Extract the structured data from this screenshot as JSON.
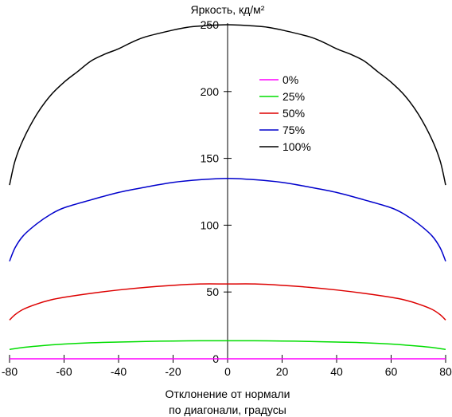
{
  "chart_data": {
    "type": "line",
    "ylabel": "Яркость, кд/м²",
    "xlabel": [
      "Отклонение от нормали",
      "по диагонали, градусы"
    ],
    "xlim": [
      -80,
      80
    ],
    "ylim": [
      0,
      250
    ],
    "xticks": [
      -80,
      -60,
      -40,
      -20,
      0,
      20,
      40,
      60,
      80
    ],
    "yticks": [
      0,
      50,
      100,
      150,
      200,
      250
    ],
    "grid": false,
    "legend_position": "center",
    "series": [
      {
        "name": "0%",
        "color": "#ff00ff",
        "points": [
          [
            -80,
            0
          ],
          [
            -60,
            0
          ],
          [
            -40,
            0
          ],
          [
            -20,
            0
          ],
          [
            0,
            0
          ],
          [
            20,
            0
          ],
          [
            40,
            0
          ],
          [
            60,
            0
          ],
          [
            80,
            0
          ]
        ]
      },
      {
        "name": "25%",
        "color": "#00dd00",
        "points": [
          [
            -80,
            7
          ],
          [
            -75,
            8.5
          ],
          [
            -70,
            9.5
          ],
          [
            -60,
            11
          ],
          [
            -50,
            12
          ],
          [
            -40,
            12.5
          ],
          [
            -30,
            13
          ],
          [
            -20,
            13.3
          ],
          [
            -10,
            13.5
          ],
          [
            0,
            13.5
          ],
          [
            10,
            13.5
          ],
          [
            20,
            13.3
          ],
          [
            30,
            13
          ],
          [
            40,
            12.5
          ],
          [
            50,
            12
          ],
          [
            60,
            11
          ],
          [
            70,
            9.5
          ],
          [
            75,
            8.5
          ],
          [
            80,
            7
          ]
        ]
      },
      {
        "name": "50%",
        "color": "#dd0000",
        "points": [
          [
            -80,
            29
          ],
          [
            -78,
            33
          ],
          [
            -75,
            37
          ],
          [
            -70,
            41
          ],
          [
            -65,
            44
          ],
          [
            -60,
            46
          ],
          [
            -50,
            49
          ],
          [
            -40,
            51.5
          ],
          [
            -30,
            53.5
          ],
          [
            -20,
            55
          ],
          [
            -10,
            56
          ],
          [
            0,
            56
          ],
          [
            10,
            56
          ],
          [
            20,
            55
          ],
          [
            30,
            53.5
          ],
          [
            40,
            51.5
          ],
          [
            50,
            49
          ],
          [
            60,
            46
          ],
          [
            65,
            44
          ],
          [
            70,
            41
          ],
          [
            75,
            37
          ],
          [
            78,
            33
          ],
          [
            80,
            29
          ]
        ]
      },
      {
        "name": "75%",
        "color": "#0000cc",
        "points": [
          [
            -80,
            73
          ],
          [
            -78,
            83
          ],
          [
            -75,
            92
          ],
          [
            -70,
            101
          ],
          [
            -65,
            108
          ],
          [
            -60,
            113
          ],
          [
            -50,
            119
          ],
          [
            -40,
            124.5
          ],
          [
            -30,
            128.5
          ],
          [
            -20,
            132
          ],
          [
            -10,
            134
          ],
          [
            0,
            135
          ],
          [
            10,
            134
          ],
          [
            20,
            132
          ],
          [
            30,
            128.5
          ],
          [
            40,
            124.5
          ],
          [
            50,
            119
          ],
          [
            60,
            113
          ],
          [
            65,
            108
          ],
          [
            70,
            101
          ],
          [
            75,
            92
          ],
          [
            78,
            83
          ],
          [
            80,
            73
          ]
        ]
      },
      {
        "name": "100%",
        "color": "#000000",
        "points": [
          [
            -80,
            130
          ],
          [
            -78,
            148
          ],
          [
            -75,
            164
          ],
          [
            -70,
            183
          ],
          [
            -65,
            197
          ],
          [
            -60,
            207
          ],
          [
            -55,
            215
          ],
          [
            -50,
            223
          ],
          [
            -45,
            228
          ],
          [
            -40,
            232
          ],
          [
            -35,
            237
          ],
          [
            -30,
            241
          ],
          [
            -20,
            246
          ],
          [
            -15,
            248
          ],
          [
            -10,
            249
          ],
          [
            0,
            250
          ],
          [
            10,
            249
          ],
          [
            15,
            248
          ],
          [
            20,
            246
          ],
          [
            30,
            241
          ],
          [
            35,
            237
          ],
          [
            40,
            232
          ],
          [
            45,
            228
          ],
          [
            50,
            223
          ],
          [
            55,
            215
          ],
          [
            60,
            207
          ],
          [
            65,
            197
          ],
          [
            70,
            183
          ],
          [
            75,
            164
          ],
          [
            78,
            148
          ],
          [
            80,
            130
          ]
        ]
      }
    ]
  }
}
